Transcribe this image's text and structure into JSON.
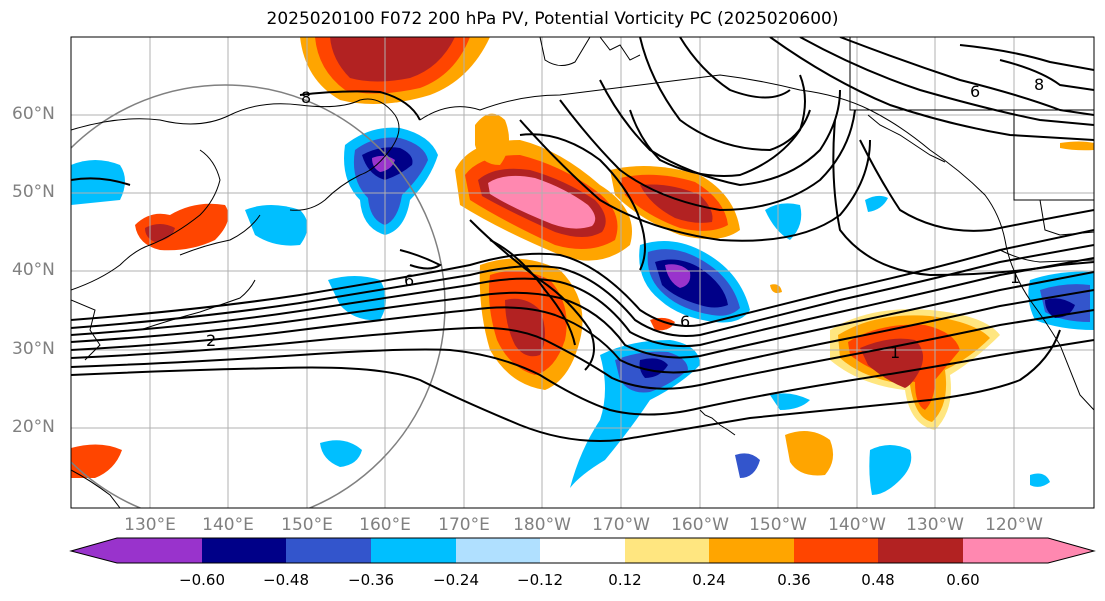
{
  "title": "2025020100 F072 200 hPa PV, Potential Vorticity PC (2025020600)",
  "latitude_labels": [
    "60°N",
    "50°N",
    "40°N",
    "30°N",
    "20°N"
  ],
  "longitude_labels": [
    "130°E",
    "140°E",
    "150°E",
    "160°E",
    "170°E",
    "180°W",
    "170°W",
    "160°W",
    "150°W",
    "140°W",
    "130°W",
    "120°W"
  ],
  "contour_labels": [
    "8",
    "6",
    "2",
    "1",
    "6",
    "8",
    "6",
    "1"
  ],
  "colorbar": {
    "tick_labels": [
      "−0.60",
      "−0.48",
      "−0.36",
      "−0.24",
      "−0.12",
      "0.12",
      "0.24",
      "0.36",
      "0.48",
      "0.60"
    ],
    "colors": [
      "#9933cc",
      "#000088",
      "#3355cc",
      "#00bfff",
      "#b0e0ff",
      "#ffffff",
      "#ffe680",
      "#ffa500",
      "#ff4500",
      "#b22222",
      "#ff88b0"
    ]
  },
  "colors": {
    "coastline": "#000000",
    "contour": "#000000",
    "grid": "#b0b0b0",
    "range_circle": "#808080"
  }
}
